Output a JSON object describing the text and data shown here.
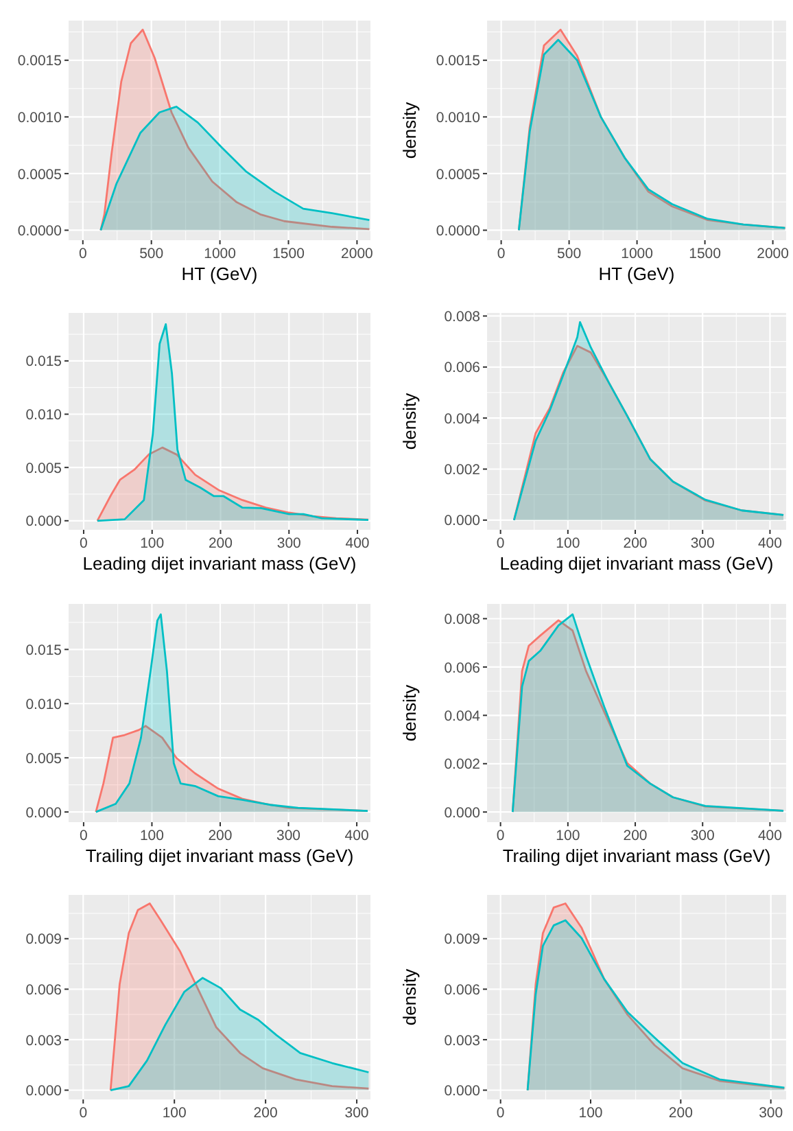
{
  "chart_data": [
    {
      "type": "area",
      "xlabel": "HT (GeV)",
      "xlim": [
        -104,
        2098
      ],
      "xticks": [
        0,
        500,
        1000,
        1500,
        2000
      ],
      "ylim": [
        -8.8e-05,
        0.00185
      ],
      "yticks": [
        {
          "value": 0,
          "label": "0.0000"
        },
        {
          "value": 0.0005,
          "label": "0.0005"
        },
        {
          "value": 0.001,
          "label": "0.0010"
        },
        {
          "value": 0.0015,
          "label": "0.0015"
        }
      ],
      "grid": true,
      "series": [
        {
          "color": "#f8766d",
          "x": [
            130,
            157,
            210,
            280,
            350,
            437,
            524,
            647,
            769,
            944,
            1119,
            1294,
            1469,
            1818,
            2090
          ],
          "values": [
            0,
            0.00014,
            0.00068,
            0.00131,
            0.00165,
            0.00177,
            0.00152,
            0.00104,
            0.00073,
            0.00043,
            0.00025,
            0.00014,
            8e-05,
            3e-05,
            1e-05
          ]
        },
        {
          "color": "#00bfc4",
          "x": [
            130,
            245,
            420,
            559,
            682,
            839,
            1014,
            1189,
            1399,
            1608,
            1818,
            2090
          ],
          "values": [
            0,
            0.00041,
            0.00086,
            0.00104,
            0.00109,
            0.00095,
            0.00073,
            0.00052,
            0.00034,
            0.00019,
            0.00015,
            9e-05
          ]
        }
      ]
    },
    {
      "type": "area",
      "xlabel": "HT (GeV)",
      "ylabel": "density",
      "xlim": [
        -104,
        2098
      ],
      "xticks": [
        0,
        500,
        1000,
        1500,
        2000
      ],
      "ylim": [
        -8.8e-05,
        0.00185
      ],
      "yticks": [
        {
          "value": 0,
          "label": "0.0000"
        },
        {
          "value": 0.0005,
          "label": "0.0005"
        },
        {
          "value": 0.001,
          "label": "0.0010"
        },
        {
          "value": 0.0015,
          "label": "0.0015"
        }
      ],
      "grid": true,
      "series": [
        {
          "color": "#f8766d",
          "x": [
            130,
            210,
            315,
            437,
            559,
            734,
            909,
            1084,
            1259,
            1521,
            1783,
            2090
          ],
          "values": [
            0,
            0.00091,
            0.00163,
            0.00177,
            0.00154,
            0.001,
            0.00064,
            0.00034,
            0.00021,
            9e-05,
            5e-05,
            2e-05
          ]
        },
        {
          "color": "#00bfc4",
          "x": [
            130,
            210,
            315,
            420,
            559,
            734,
            909,
            1084,
            1259,
            1521,
            1783,
            2090
          ],
          "values": [
            0,
            0.00087,
            0.00155,
            0.00168,
            0.0015,
            0.001,
            0.00064,
            0.00036,
            0.00023,
            0.0001,
            5e-05,
            2e-05
          ]
        }
      ]
    },
    {
      "type": "area",
      "xlabel": "Leading dijet invariant mass (GeV)",
      "xlim": [
        -22,
        419
      ],
      "xticks": [
        0,
        100,
        200,
        300,
        400
      ],
      "ylim": [
        -0.00085,
        0.0195
      ],
      "yticks": [
        {
          "value": 0,
          "label": "0.000"
        },
        {
          "value": 0.005,
          "label": "0.005"
        },
        {
          "value": 0.01,
          "label": "0.010"
        },
        {
          "value": 0.015,
          "label": "0.015"
        }
      ],
      "grid": true,
      "series": [
        {
          "color": "#f8766d",
          "x": [
            20,
            40,
            53,
            74,
            95,
            115,
            136,
            163,
            197,
            232,
            266,
            300,
            334,
            369,
            416
          ],
          "values": [
            0,
            0.00242,
            0.00384,
            0.00479,
            0.00621,
            0.00687,
            0.00621,
            0.00431,
            0.00289,
            0.00194,
            0.00123,
            0.00076,
            0.00043,
            0.00024,
            0.0001
          ]
        },
        {
          "color": "#00bfc4",
          "x": [
            20,
            60,
            88,
            101,
            111,
            120,
            129,
            137,
            149,
            170,
            190,
            204,
            232,
            259,
            300,
            321,
            348,
            416
          ],
          "values": [
            0,
            0.00014,
            0.00194,
            0.0081,
            0.0166,
            0.01844,
            0.0138,
            0.00668,
            0.00384,
            0.00313,
            0.00232,
            0.00232,
            0.00123,
            0.00119,
            0.00062,
            0.00062,
            0.00024,
            8e-05
          ]
        }
      ]
    },
    {
      "type": "area",
      "xlabel": "Leading dijet invariant mass (GeV)",
      "ylabel": "density",
      "xlim": [
        -20,
        424
      ],
      "xticks": [
        0,
        100,
        200,
        300,
        400
      ],
      "ylim": [
        -0.00038,
        0.00812
      ],
      "yticks": [
        {
          "value": 0,
          "label": "0.000"
        },
        {
          "value": 0.002,
          "label": "0.002"
        },
        {
          "value": 0.004,
          "label": "0.004"
        },
        {
          "value": 0.006,
          "label": "0.006"
        },
        {
          "value": 0.008,
          "label": "0.008"
        }
      ],
      "grid": true,
      "series": [
        {
          "color": "#f8766d",
          "x": [
            20,
            52,
            73,
            93,
            114,
            134,
            161,
            188,
            222,
            256,
            304,
            358,
            420
          ],
          "values": [
            0,
            0.0034,
            0.00439,
            0.00578,
            0.00683,
            0.00657,
            0.00538,
            0.00409,
            0.0024,
            0.00151,
            0.00077,
            0.00038,
            0.0002
          ]
        },
        {
          "color": "#00bfc4",
          "x": [
            20,
            52,
            73,
            93,
            114,
            118,
            134,
            161,
            188,
            222,
            256,
            304,
            358,
            420
          ],
          "values": [
            0,
            0.0031,
            0.00429,
            0.00568,
            0.00717,
            0.00776,
            0.00677,
            0.00538,
            0.00409,
            0.0024,
            0.00151,
            0.0008,
            0.00038,
            0.0002
          ]
        }
      ]
    },
    {
      "type": "area",
      "xlabel": "Trailing dijet invariant mass (GeV)",
      "xlim": [
        -22,
        420
      ],
      "xticks": [
        0,
        100,
        200,
        300,
        400
      ],
      "ylim": [
        -0.00094,
        0.0192
      ],
      "yticks": [
        {
          "value": 0,
          "label": "0.000"
        },
        {
          "value": 0.005,
          "label": "0.005"
        },
        {
          "value": 0.01,
          "label": "0.010"
        },
        {
          "value": 0.015,
          "label": "0.015"
        }
      ],
      "grid": true,
      "series": [
        {
          "color": "#f8766d",
          "x": [
            18,
            29,
            43,
            60,
            81,
            91,
            115,
            136,
            163,
            197,
            232,
            266,
            300,
            416
          ],
          "values": [
            0,
            0.00263,
            0.00686,
            0.0071,
            0.00757,
            0.00794,
            0.00686,
            0.00498,
            0.00357,
            0.00216,
            0.00122,
            0.00075,
            0.00038,
            0.0001
          ]
        },
        {
          "color": "#00bfc4",
          "x": [
            18,
            47,
            67,
            84,
            98,
            108,
            113,
            122,
            132,
            142,
            163,
            197,
            232,
            273,
            314,
            416
          ],
          "values": [
            0,
            0.00075,
            0.00263,
            0.00686,
            0.013,
            0.01767,
            0.01824,
            0.013,
            0.00451,
            0.00263,
            0.0024,
            0.00146,
            0.00113,
            0.00066,
            0.00038,
            0.0001
          ]
        }
      ]
    },
    {
      "type": "area",
      "xlabel": "Trailing dijet invariant mass (GeV)",
      "ylabel": "density",
      "xlim": [
        -20,
        424
      ],
      "xticks": [
        0,
        100,
        200,
        300,
        400
      ],
      "ylim": [
        -0.00042,
        0.00861
      ],
      "yticks": [
        {
          "value": 0,
          "label": "0.000"
        },
        {
          "value": 0.002,
          "label": "0.002"
        },
        {
          "value": 0.004,
          "label": "0.004"
        },
        {
          "value": 0.006,
          "label": "0.006"
        },
        {
          "value": 0.008,
          "label": "0.008"
        }
      ],
      "grid": true,
      "series": [
        {
          "color": "#f8766d",
          "x": [
            18,
            32,
            42,
            59,
            86,
            107,
            127,
            154,
            188,
            222,
            256,
            304,
            420
          ],
          "values": [
            0,
            0.00583,
            0.00688,
            0.0073,
            0.00793,
            0.00751,
            0.00583,
            0.00414,
            0.00203,
            0.00118,
            0.00061,
            0.00023,
            5e-05
          ]
        },
        {
          "color": "#00bfc4",
          "x": [
            18,
            32,
            42,
            59,
            86,
            107,
            127,
            154,
            188,
            222,
            256,
            304,
            420
          ],
          "values": [
            0,
            0.00519,
            0.00625,
            0.00667,
            0.00772,
            0.00818,
            0.00646,
            0.00435,
            0.00192,
            0.00118,
            0.00061,
            0.00025,
            5e-05
          ]
        }
      ]
    },
    {
      "type": "area",
      "xlim": [
        -16,
        315
      ],
      "xticks": [
        0,
        100,
        200,
        300
      ],
      "ylim": [
        -0.00055,
        0.0116
      ],
      "yticks": [
        {
          "value": 0,
          "label": "0.000"
        },
        {
          "value": 0.003,
          "label": "0.003"
        },
        {
          "value": 0.006,
          "label": "0.006"
        },
        {
          "value": 0.009,
          "label": "0.009"
        }
      ],
      "grid": true,
      "series": [
        {
          "color": "#f8766d",
          "x": [
            30,
            40,
            50,
            60,
            73,
            85,
            106,
            126,
            146,
            172,
            197,
            233,
            273,
            313
          ],
          "values": [
            0,
            0.0063,
            0.00933,
            0.0107,
            0.01109,
            0.01009,
            0.00827,
            0.006,
            0.00373,
            0.00221,
            0.0013,
            0.00064,
            0.00024,
            0.0001
          ]
        },
        {
          "color": "#00bfc4",
          "x": [
            30,
            50,
            70,
            90,
            111,
            131,
            151,
            172,
            192,
            212,
            238,
            273,
            313
          ],
          "values": [
            0,
            0.00024,
            0.00176,
            0.00388,
            0.00585,
            0.00667,
            0.00606,
            0.00479,
            0.00418,
            0.00327,
            0.00221,
            0.00161,
            0.00106
          ]
        }
      ]
    },
    {
      "type": "area",
      "ylabel": "density",
      "xlim": [
        -15,
        317
      ],
      "xticks": [
        0,
        100,
        200,
        300
      ],
      "ylim": [
        -0.00055,
        0.0116
      ],
      "yticks": [
        {
          "value": 0,
          "label": "0.000"
        },
        {
          "value": 0.003,
          "label": "0.003"
        },
        {
          "value": 0.006,
          "label": "0.006"
        },
        {
          "value": 0.009,
          "label": "0.009"
        }
      ],
      "grid": true,
      "series": [
        {
          "color": "#f8766d",
          "x": [
            30,
            39,
            47,
            59,
            72,
            90,
            115,
            141,
            171,
            202,
            243,
            315
          ],
          "values": [
            0,
            0.0063,
            0.00933,
            0.01085,
            0.01109,
            0.00964,
            0.0066,
            0.00448,
            0.00267,
            0.0013,
            0.00055,
            0.00012
          ]
        },
        {
          "color": "#00bfc4",
          "x": [
            30,
            39,
            47,
            59,
            72,
            90,
            115,
            141,
            171,
            202,
            243,
            315
          ],
          "values": [
            0,
            0.0057,
            0.00858,
            0.00979,
            0.01009,
            0.00903,
            0.0066,
            0.00464,
            0.00312,
            0.00161,
            0.00064,
            0.00015
          ]
        }
      ]
    }
  ]
}
